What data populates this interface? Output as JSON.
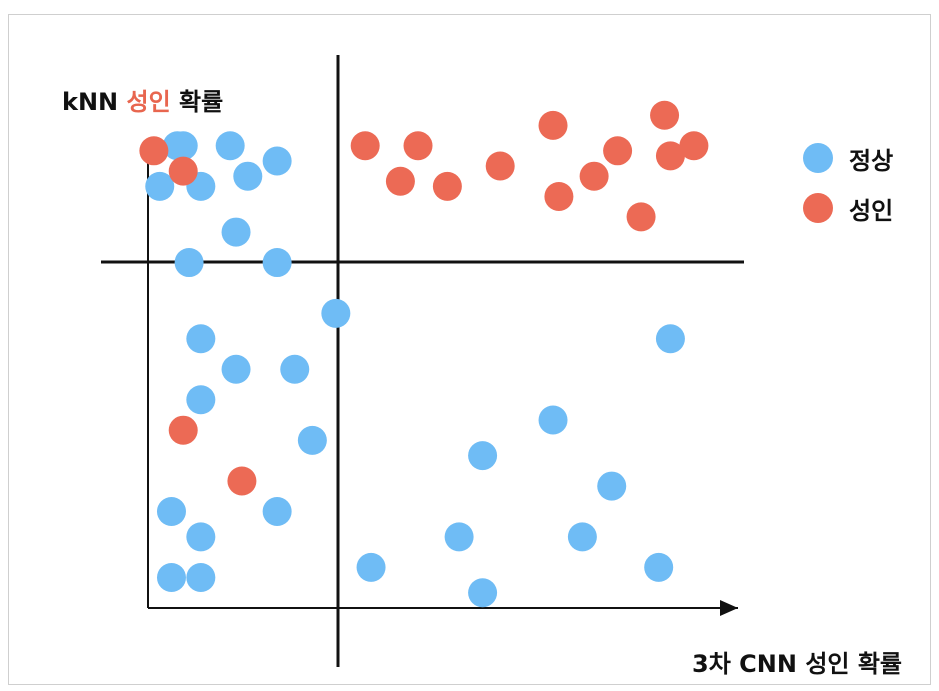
{
  "colors": {
    "normal": "#6fbcf5",
    "adult": "#ec6a55",
    "axis": "#111111"
  },
  "labels": {
    "y_prefix": "kNN",
    "y_highlight": "성인",
    "y_suffix": "확률",
    "x_axis": "3차 CNN 성인 확률"
  },
  "legend": [
    {
      "label": "정상",
      "color": "#6fbcf5"
    },
    {
      "label": "성인",
      "color": "#ec6a55"
    }
  ],
  "chart_data": {
    "type": "scatter",
    "xlabel": "3차 CNN 성인 확률",
    "ylabel": "kNN 성인 확률",
    "xlim": [
      0,
      1
    ],
    "ylim": [
      0,
      1
    ],
    "threshold_x": 0.32,
    "threshold_y": 0.63,
    "series": [
      {
        "name": "정상",
        "points": [
          [
            0.06,
            0.91
          ],
          [
            0.14,
            0.91
          ],
          [
            0.22,
            0.88
          ],
          [
            0.17,
            0.85
          ],
          [
            0.02,
            0.83
          ],
          [
            0.09,
            0.83
          ],
          [
            0.15,
            0.74
          ],
          [
            0.07,
            0.68
          ],
          [
            0.22,
            0.68
          ],
          [
            0.32,
            0.58
          ],
          [
            0.09,
            0.53
          ],
          [
            0.15,
            0.47
          ],
          [
            0.25,
            0.47
          ],
          [
            0.09,
            0.41
          ],
          [
            0.28,
            0.33
          ],
          [
            0.04,
            0.19
          ],
          [
            0.22,
            0.19
          ],
          [
            0.09,
            0.14
          ],
          [
            0.04,
            0.06
          ],
          [
            0.09,
            0.06
          ],
          [
            0.38,
            0.08
          ],
          [
            0.53,
            0.14
          ],
          [
            0.57,
            0.3
          ],
          [
            0.69,
            0.37
          ],
          [
            0.79,
            0.24
          ],
          [
            0.74,
            0.14
          ],
          [
            0.87,
            0.08
          ],
          [
            0.57,
            0.03
          ],
          [
            0.89,
            0.53
          ],
          [
            0.05,
            0.91
          ]
        ]
      },
      {
        "name": "성인",
        "points": [
          [
            0.01,
            0.9
          ],
          [
            0.06,
            0.86
          ],
          [
            0.37,
            0.91
          ],
          [
            0.46,
            0.91
          ],
          [
            0.51,
            0.83
          ],
          [
            0.6,
            0.87
          ],
          [
            0.69,
            0.95
          ],
          [
            0.7,
            0.81
          ],
          [
            0.8,
            0.9
          ],
          [
            0.76,
            0.85
          ],
          [
            0.88,
            0.97
          ],
          [
            0.89,
            0.89
          ],
          [
            0.93,
            0.91
          ],
          [
            0.84,
            0.77
          ],
          [
            0.06,
            0.35
          ],
          [
            0.16,
            0.25
          ],
          [
            0.43,
            0.84
          ]
        ]
      }
    ]
  }
}
